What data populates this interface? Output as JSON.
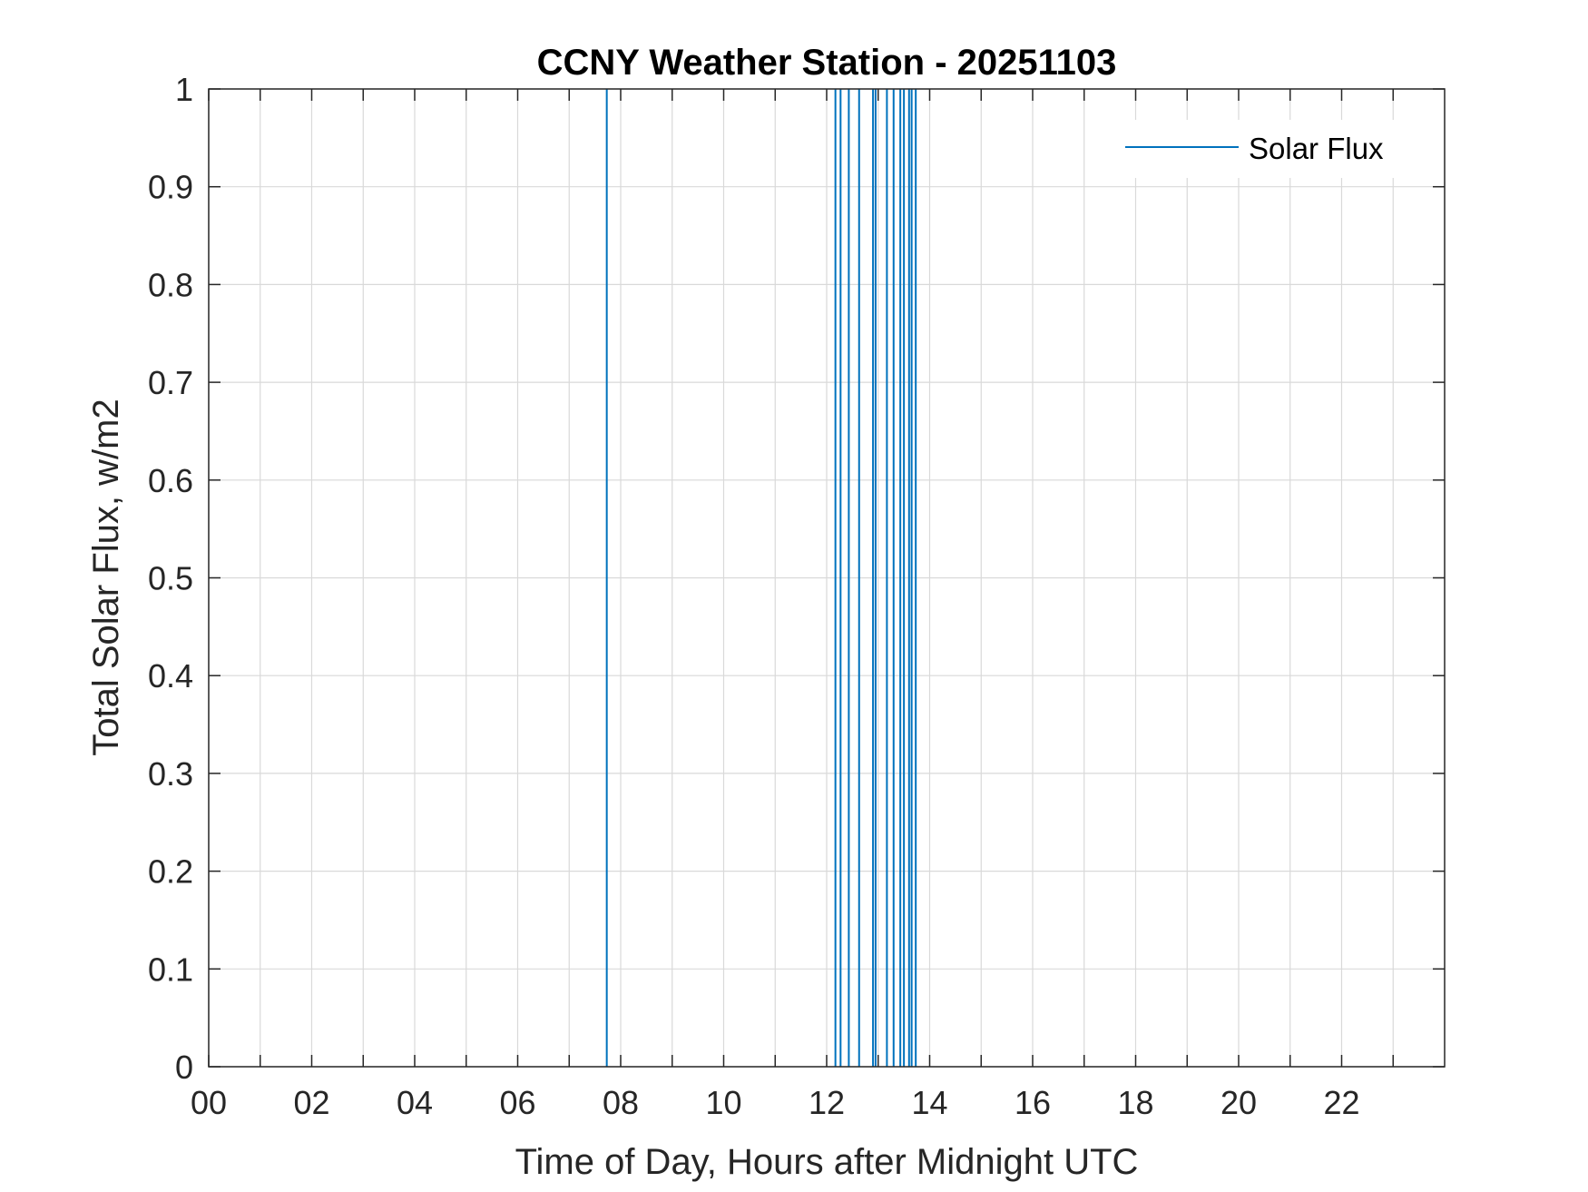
{
  "chart_data": {
    "type": "line",
    "title": "CCNY Weather Station - 20251103",
    "xlabel": "Time of Day, Hours after Midnight UTC",
    "ylabel": "Total Solar Flux, w/m2",
    "xlim": [
      0,
      24
    ],
    "ylim": [
      0,
      1
    ],
    "x_tick_values": [
      0,
      2,
      4,
      6,
      8,
      10,
      12,
      14,
      16,
      18,
      20,
      22
    ],
    "x_tick_labels": [
      "00",
      "02",
      "04",
      "06",
      "08",
      "10",
      "12",
      "14",
      "16",
      "18",
      "20",
      "22"
    ],
    "x_minor_ticks": [
      1,
      3,
      5,
      7,
      9,
      11,
      13,
      15,
      17,
      19,
      21,
      23
    ],
    "y_tick_values": [
      0,
      0.1,
      0.2,
      0.3,
      0.4,
      0.5,
      0.6,
      0.7,
      0.8,
      0.9,
      1
    ],
    "y_tick_labels": [
      "0",
      "0.1",
      "0.2",
      "0.3",
      "0.4",
      "0.5",
      "0.6",
      "0.7",
      "0.8",
      "0.9",
      "1"
    ],
    "grid": true,
    "legend_position": "top-right",
    "series": [
      {
        "name": "Solar Flux",
        "color": "#0072BD",
        "spike_hours": [
          7.73,
          12.17,
          12.27,
          12.43,
          12.63,
          12.9,
          12.95,
          13.17,
          13.3,
          13.43,
          13.5,
          13.6,
          13.65,
          13.73
        ]
      }
    ]
  }
}
